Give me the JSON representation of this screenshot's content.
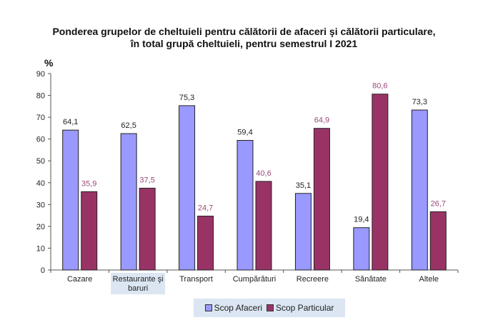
{
  "chart_data": {
    "type": "bar",
    "title_line1": "Ponderea grupelor de cheltuieli pentru călătorii de afaceri şi călătorii particulare,",
    "title_line2": "în total grupă cheltuieli, pentru semestrul I 2021",
    "ylabel": "%",
    "ylim": [
      0,
      90
    ],
    "yticks": [
      0,
      10,
      20,
      30,
      40,
      50,
      60,
      70,
      80,
      90
    ],
    "categories": [
      "Cazare",
      "Restaurante şi baruri",
      "Transport",
      "Cumpărături",
      "Recreere",
      "Sănătate",
      "Altele"
    ],
    "series": [
      {
        "name": "Scop Afaceri",
        "color": "#9999ff",
        "values": [
          64.1,
          62.5,
          75.3,
          59.4,
          35.1,
          19.4,
          73.3
        ],
        "labels": [
          "64,1",
          "62,5",
          "75,3",
          "59,4",
          "35,1",
          "19,4",
          "73,3"
        ]
      },
      {
        "name": "Scop Particular",
        "color": "#993366",
        "values": [
          35.9,
          37.5,
          24.7,
          40.6,
          64.9,
          80.6,
          26.7
        ],
        "labels": [
          "35,9",
          "37,5",
          "24,7",
          "40,6",
          "64,9",
          "80,6",
          "26,7"
        ]
      }
    ],
    "legend_position": "bottom",
    "grid": false
  }
}
